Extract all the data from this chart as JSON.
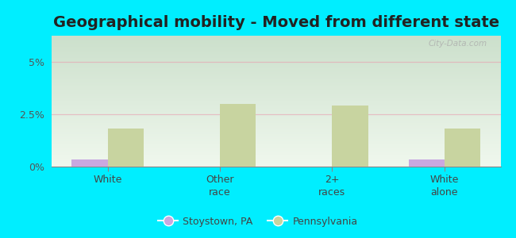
{
  "title": "Geographical mobility - Moved from different state",
  "categories": [
    "White",
    "Other\nrace",
    "2+\nraces",
    "White\nalone"
  ],
  "stoystown_values": [
    0.35,
    0.0,
    0.0,
    0.35
  ],
  "pennsylvania_values": [
    1.8,
    3.0,
    2.9,
    1.8
  ],
  "stoystown_color": "#c9a8e0",
  "pennsylvania_color": "#c8d4a0",
  "background_outer": "#00eeff",
  "grad_top": "#cce0cc",
  "grad_bottom": "#f0f8ee",
  "ylim": [
    0,
    6.25
  ],
  "yticks": [
    0,
    2.5,
    5.0
  ],
  "ytick_labels": [
    "0%",
    "2.5%",
    "5%"
  ],
  "legend_labels": [
    "Stoystown, PA",
    "Pennsylvania"
  ],
  "watermark": "City-Data.com",
  "title_fontsize": 14,
  "bar_width": 0.32,
  "grid_color": "#e8a0b0",
  "grid_alpha": 0.6
}
